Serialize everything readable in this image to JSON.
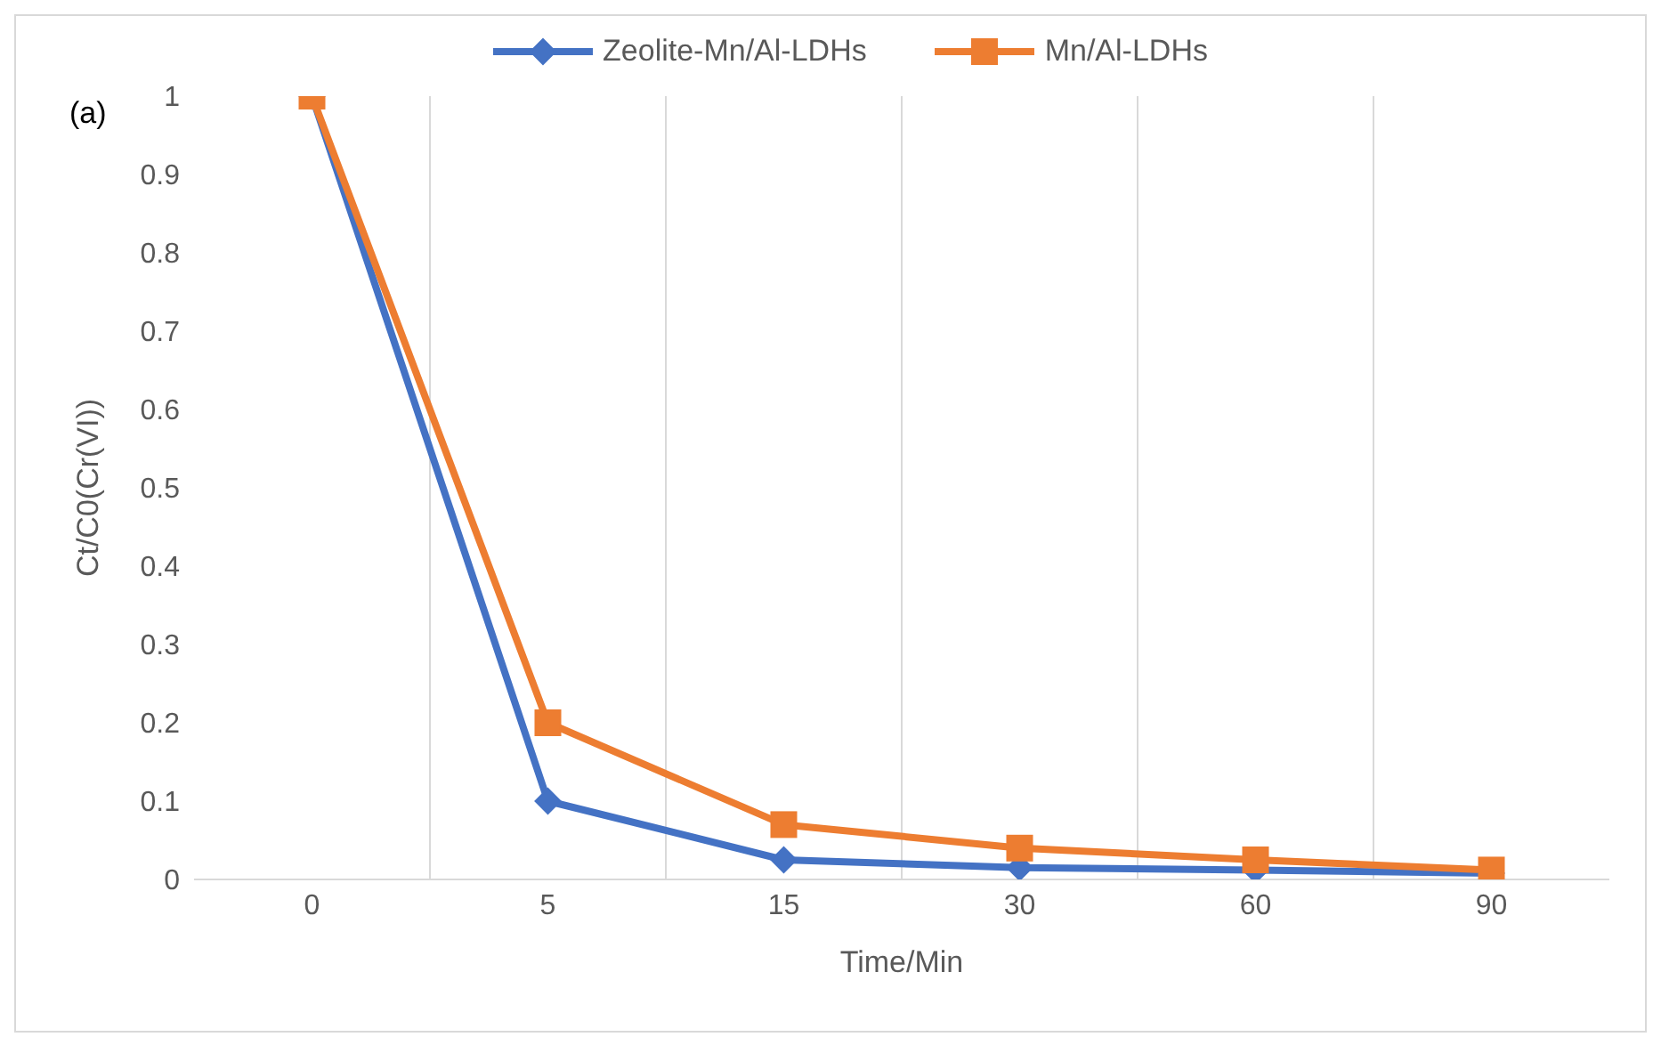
{
  "chart_data": {
    "type": "line",
    "xlabel": "Time/Min",
    "ylabel": "Ct/C0(Cr(VI))",
    "annotations": [
      "(a)"
    ],
    "categories": [
      "0",
      "5",
      "15",
      "30",
      "60",
      "90"
    ],
    "series": [
      {
        "name": "Zeolite-Mn/Al-LDHs",
        "color": "#4472c4",
        "marker": "diamond",
        "values": [
          1,
          0.1,
          0.025,
          0.015,
          0.012,
          0.008
        ]
      },
      {
        "name": "Mn/Al-LDHs",
        "color": "#ed7d31",
        "marker": "square",
        "values": [
          1,
          0.2,
          0.07,
          0.04,
          0.025,
          0.012
        ]
      }
    ],
    "ylim": [
      0,
      1
    ],
    "yticks": [
      0,
      0.1,
      0.2,
      0.3,
      0.4,
      0.5,
      0.6,
      0.7,
      0.8,
      0.9,
      1
    ],
    "grid": "x",
    "legend": "top",
    "line_style": "solid"
  }
}
